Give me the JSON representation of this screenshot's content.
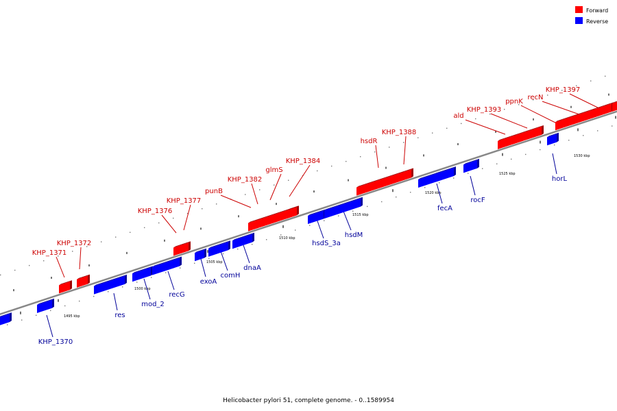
{
  "caption": "Helicobacter pylori 51, complete genome. - 0..1589954",
  "legend": [
    {
      "label": "Forward",
      "color": "#ff0000"
    },
    {
      "label": "Reverse",
      "color": "#0000ff"
    }
  ],
  "colors": {
    "forward": "#ff0000",
    "forward_dark": "#a00000",
    "reverse": "#0000ff",
    "reverse_dark": "#0000a0",
    "label_forward": "#cc0000",
    "label_reverse": "#000099",
    "backbone": "#888888"
  },
  "scale_labels": [
    "1495 kbp",
    "1500 kbp",
    "1505 kbp",
    "1510 kbp",
    "1515 kbp",
    "1520 kbp",
    "1525 kbp",
    "1530 kbp"
  ],
  "genes_forward": [
    {
      "name": "KHP_1371"
    },
    {
      "name": "KHP_1372"
    },
    {
      "name": "KHP_1376"
    },
    {
      "name": "KHP_1377"
    },
    {
      "name": "punB"
    },
    {
      "name": "KHP_1382"
    },
    {
      "name": "glmS"
    },
    {
      "name": "KHP_1384"
    },
    {
      "name": "hsdR"
    },
    {
      "name": "KHP_1388"
    },
    {
      "name": "ald"
    },
    {
      "name": "KHP_1393"
    },
    {
      "name": "ppnK"
    },
    {
      "name": "recN"
    },
    {
      "name": "KHP_1397"
    }
  ],
  "genes_reverse": [
    {
      "name": "KHP_1370"
    },
    {
      "name": "res"
    },
    {
      "name": "mod_2"
    },
    {
      "name": "recG"
    },
    {
      "name": "exoA"
    },
    {
      "name": "comH"
    },
    {
      "name": "dnaA"
    },
    {
      "name": "hsdS_3a"
    },
    {
      "name": "hsdM"
    },
    {
      "name": "fecA"
    },
    {
      "name": "rocF"
    },
    {
      "name": "horL"
    }
  ]
}
